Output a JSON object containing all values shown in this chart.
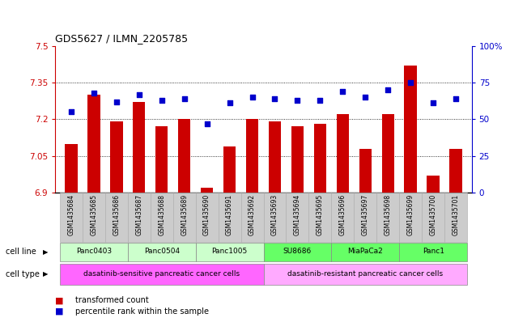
{
  "title": "GDS5627 / ILMN_2205785",
  "samples": [
    "GSM1435684",
    "GSM1435685",
    "GSM1435686",
    "GSM1435687",
    "GSM1435688",
    "GSM1435689",
    "GSM1435690",
    "GSM1435691",
    "GSM1435692",
    "GSM1435693",
    "GSM1435694",
    "GSM1435695",
    "GSM1435696",
    "GSM1435697",
    "GSM1435698",
    "GSM1435699",
    "GSM1435700",
    "GSM1435701"
  ],
  "bar_values": [
    7.1,
    7.3,
    7.19,
    7.27,
    7.17,
    7.2,
    6.92,
    7.09,
    7.2,
    7.19,
    7.17,
    7.18,
    7.22,
    7.08,
    7.22,
    7.42,
    6.97,
    7.08
  ],
  "percentile_values": [
    55,
    68,
    62,
    67,
    63,
    64,
    47,
    61,
    65,
    64,
    63,
    63,
    69,
    65,
    70,
    75,
    61,
    64
  ],
  "ylim_left": [
    6.9,
    7.5
  ],
  "ylim_right": [
    0,
    100
  ],
  "yticks_left": [
    6.9,
    7.05,
    7.2,
    7.35,
    7.5
  ],
  "yticks_right": [
    0,
    25,
    50,
    75,
    100
  ],
  "ytick_labels_left": [
    "6.9",
    "7.05",
    "7.2",
    "7.35",
    "7.5"
  ],
  "ytick_labels_right": [
    "0",
    "25",
    "50",
    "75",
    "100%"
  ],
  "bar_color": "#cc0000",
  "dot_color": "#0000cc",
  "cell_lines": [
    {
      "label": "Panc0403",
      "start": 0,
      "end": 2,
      "color": "#ccffcc"
    },
    {
      "label": "Panc0504",
      "start": 3,
      "end": 5,
      "color": "#ccffcc"
    },
    {
      "label": "Panc1005",
      "start": 6,
      "end": 8,
      "color": "#ccffcc"
    },
    {
      "label": "SU8686",
      "start": 9,
      "end": 11,
      "color": "#66ff66"
    },
    {
      "label": "MiaPaCa2",
      "start": 12,
      "end": 14,
      "color": "#66ff66"
    },
    {
      "label": "Panc1",
      "start": 15,
      "end": 17,
      "color": "#66ff66"
    }
  ],
  "cell_types": [
    {
      "label": "dasatinib-sensitive pancreatic cancer cells",
      "start": 0,
      "end": 8,
      "color": "#ff66ff"
    },
    {
      "label": "dasatinib-resistant pancreatic cancer cells",
      "start": 9,
      "end": 17,
      "color": "#ffaaff"
    }
  ],
  "legend_items": [
    {
      "label": "transformed count",
      "color": "#cc0000"
    },
    {
      "label": "percentile rank within the sample",
      "color": "#0000cc"
    }
  ],
  "cell_line_label": "cell line",
  "cell_type_label": "cell type",
  "left_axis_color": "#cc0000",
  "right_axis_color": "#0000cc",
  "sample_bg_color": "#cccccc",
  "sample_edge_color": "#aaaaaa"
}
